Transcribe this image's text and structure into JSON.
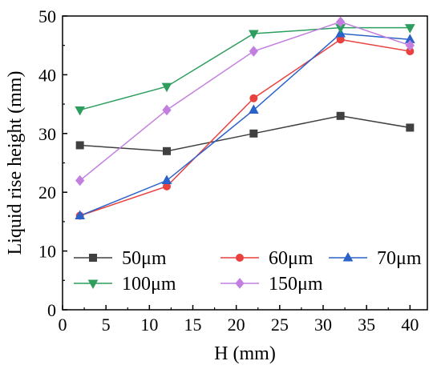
{
  "chart_data": {
    "type": "line",
    "title": "",
    "xlabel": "H (mm)",
    "ylabel": "Liquid rise height (mm)",
    "xlim": [
      0,
      42
    ],
    "ylim": [
      0,
      50
    ],
    "xticks": [
      0,
      5,
      10,
      15,
      20,
      25,
      30,
      35,
      40
    ],
    "yticks": [
      0,
      10,
      20,
      30,
      40,
      50
    ],
    "x": [
      2,
      12,
      22,
      32,
      40
    ],
    "grid": false,
    "legend_position": "bottom-inside",
    "series": [
      {
        "name": "50μm",
        "color": "#404040",
        "marker": "square",
        "values": [
          28,
          27,
          30,
          33,
          31
        ]
      },
      {
        "name": "60μm",
        "color": "#e8413e",
        "marker": "circle",
        "values": [
          16,
          21,
          36,
          46,
          44
        ]
      },
      {
        "name": "70μm",
        "color": "#2b62c9",
        "marker": "triangle-up",
        "values": [
          16,
          22,
          34,
          47,
          46
        ]
      },
      {
        "name": "100μm",
        "color": "#2e9e5f",
        "marker": "triangle-down",
        "values": [
          34,
          38,
          47,
          48,
          48
        ]
      },
      {
        "name": "150μm",
        "color": "#c27fe0",
        "marker": "diamond",
        "values": [
          22,
          34,
          44,
          49,
          45
        ]
      }
    ]
  }
}
